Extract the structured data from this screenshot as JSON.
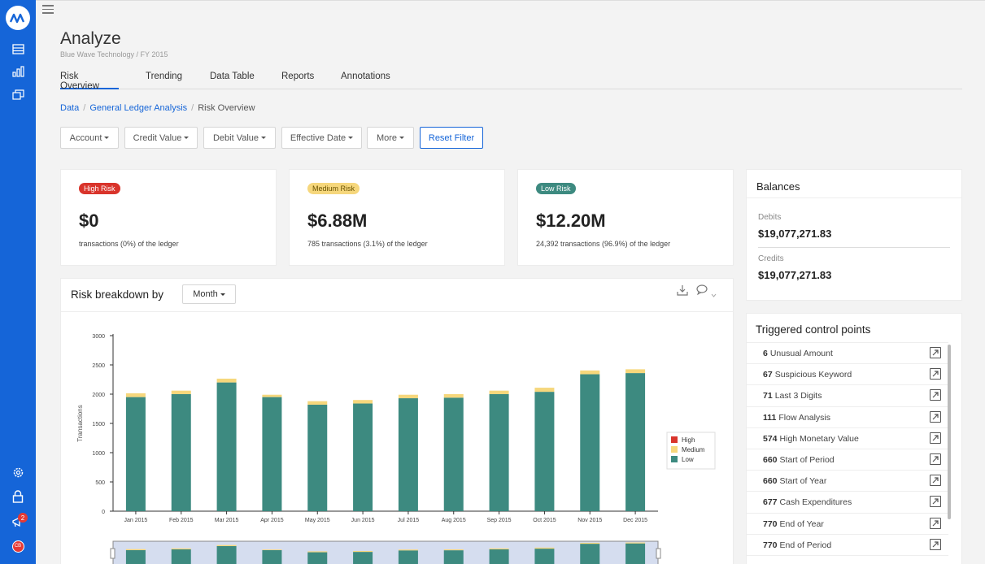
{
  "app": {
    "title": "Analyze",
    "subtitle": "Blue Wave Technology / FY 2015",
    "notifications_count": "2",
    "user_initials": "CB"
  },
  "rail": {
    "icons": [
      "logo-icon",
      "ledger-icon",
      "bar-chart-icon",
      "windows-icon",
      "gear-icon",
      "lock-icon",
      "megaphone-icon",
      "user-avatar-icon"
    ]
  },
  "tabs": [
    {
      "label": "Risk Overview",
      "active": true
    },
    {
      "label": "Trending",
      "active": false
    },
    {
      "label": "Data Table",
      "active": false
    },
    {
      "label": "Reports",
      "active": false
    },
    {
      "label": "Annotations",
      "active": false
    }
  ],
  "breadcrumb": {
    "items": [
      "Data",
      "General Ledger Analysis"
    ],
    "current": "Risk Overview"
  },
  "filters": {
    "account": "Account",
    "credit_value": "Credit Value",
    "debit_value": "Debit Value",
    "effective_date": "Effective Date",
    "more": "More",
    "reset": "Reset Filter"
  },
  "risk_cards": [
    {
      "badge": "High Risk",
      "value": "$0",
      "caption": "transactions (0%) of the ledger",
      "badge_color": "#d9342b",
      "badge_text_color": "#ffffff"
    },
    {
      "badge": "Medium Risk",
      "value": "$6.88M",
      "caption": "785 transactions (3.1%) of the ledger",
      "badge_color": "#f6d77c",
      "badge_text_color": "#6a5200"
    },
    {
      "badge": "Low Risk",
      "value": "$12.20M",
      "caption": "24,392 transactions (96.9%) of the ledger",
      "badge_color": "#3d8a80",
      "badge_text_color": "#ffffff"
    }
  ],
  "balances": {
    "title": "Balances",
    "debits_label": "Debits",
    "debits_value": "$19,077,271.83",
    "credits_label": "Credits",
    "credits_value": "$19,077,271.83"
  },
  "control_points": {
    "title": "Triggered control points",
    "items": [
      {
        "count": "6",
        "label": "Unusual Amount"
      },
      {
        "count": "67",
        "label": "Suspicious Keyword"
      },
      {
        "count": "71",
        "label": "Last 3 Digits"
      },
      {
        "count": "111",
        "label": "Flow Analysis"
      },
      {
        "count": "574",
        "label": "High Monetary Value"
      },
      {
        "count": "660",
        "label": "Start of Period"
      },
      {
        "count": "660",
        "label": "Start of Year"
      },
      {
        "count": "677",
        "label": "Cash Expenditures"
      },
      {
        "count": "770",
        "label": "End of Year"
      },
      {
        "count": "770",
        "label": "End of Period"
      }
    ]
  },
  "breakdown": {
    "title": "Risk breakdown by",
    "period": "Month"
  },
  "colors": {
    "accent": "#1565d8",
    "high": "#d9342b",
    "medium": "#f6d77c",
    "low": "#3d8a80"
  },
  "chart_data": {
    "type": "bar",
    "stacked": true,
    "categories": [
      "Jan 2015",
      "Feb 2015",
      "Mar 2015",
      "Apr 2015",
      "May 2015",
      "Jun 2015",
      "Jul 2015",
      "Aug 2015",
      "Sep 2015",
      "Oct 2015",
      "Nov 2015",
      "Dec 2015"
    ],
    "series": [
      {
        "name": "High",
        "color": "#d9342b",
        "values": [
          0,
          0,
          0,
          0,
          0,
          0,
          0,
          0,
          0,
          0,
          0,
          0
        ]
      },
      {
        "name": "Medium",
        "color": "#f6d77c",
        "values": [
          65,
          60,
          65,
          40,
          60,
          60,
          60,
          60,
          60,
          70,
          65,
          65
        ]
      },
      {
        "name": "Low",
        "color": "#3d8a80",
        "values": [
          1950,
          2000,
          2200,
          1950,
          1820,
          1840,
          1930,
          1940,
          2000,
          2040,
          2340,
          2360
        ]
      }
    ],
    "ylabel": "Transactions",
    "xlabel": "",
    "ylim": [
      0,
      3000
    ],
    "yticks": [
      0,
      500,
      1000,
      1500,
      2000,
      2500,
      3000
    ],
    "legend_position": "right",
    "grid": false
  }
}
